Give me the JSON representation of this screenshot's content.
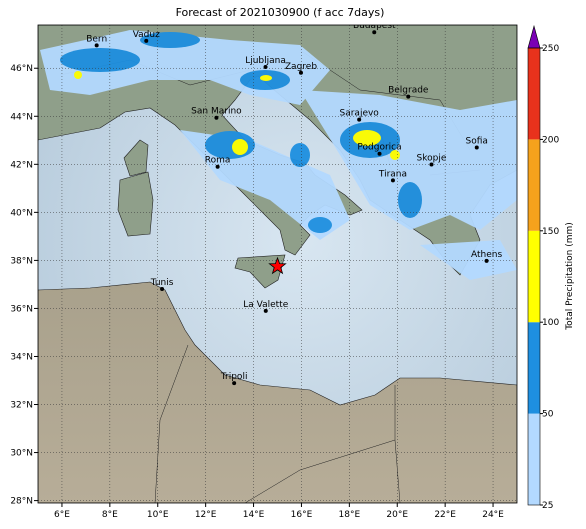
{
  "map": {
    "title": "Forecast of 2021030900 (f acc 7days)",
    "lonlim": [
      5,
      25
    ],
    "latlim": [
      27.9,
      47.8
    ],
    "lonticks": [
      {
        "value": 6,
        "label": "6°E"
      },
      {
        "value": 8,
        "label": "8°E"
      },
      {
        "value": 10,
        "label": "10°E"
      },
      {
        "value": 12,
        "label": "12°E"
      },
      {
        "value": 14,
        "label": "14°E"
      },
      {
        "value": 16,
        "label": "16°E"
      },
      {
        "value": 18,
        "label": "18°E"
      },
      {
        "value": 20,
        "label": "20°E"
      },
      {
        "value": 22,
        "label": "22°E"
      },
      {
        "value": 24,
        "label": "24°E"
      }
    ],
    "latticks": [
      {
        "value": 28,
        "label": "28°N"
      },
      {
        "value": 30,
        "label": "30°N"
      },
      {
        "value": 32,
        "label": "32°N"
      },
      {
        "value": 34,
        "label": "34°N"
      },
      {
        "value": 36,
        "label": "36°N"
      },
      {
        "value": 38,
        "label": "38°N"
      },
      {
        "value": 40,
        "label": "40°N"
      },
      {
        "value": 42,
        "label": "42°N"
      },
      {
        "value": 44,
        "label": "44°N"
      },
      {
        "value": 46,
        "label": "46°N"
      }
    ],
    "grid": true,
    "colorbar": {
      "label": "Total Precipitation (mm)",
      "levels": [
        25,
        50,
        100,
        150,
        200,
        250
      ],
      "colors": [
        "#b3d9ff",
        "#1e8fe0",
        "#ffff00",
        "#f5a21c",
        "#e8321c"
      ],
      "extend_color": "#7a00b4"
    },
    "cities": [
      {
        "name": "Bern",
        "lon": 7.45,
        "lat": 46.95
      },
      {
        "name": "Vaduz",
        "lon": 9.52,
        "lat": 47.14
      },
      {
        "name": "Budapest",
        "lon": 19.04,
        "lat": 47.5
      },
      {
        "name": "Ljubljana",
        "lon": 14.5,
        "lat": 46.05
      },
      {
        "name": "Zagreb",
        "lon": 15.98,
        "lat": 45.81
      },
      {
        "name": "Belgrade",
        "lon": 20.46,
        "lat": 44.82
      },
      {
        "name": "San Marino",
        "lon": 12.45,
        "lat": 43.94
      },
      {
        "name": "Sarajevo",
        "lon": 18.41,
        "lat": 43.86
      },
      {
        "name": "Sofia",
        "lon": 23.32,
        "lat": 42.7
      },
      {
        "name": "Podgorica",
        "lon": 19.26,
        "lat": 42.44
      },
      {
        "name": "Skopje",
        "lon": 21.43,
        "lat": 41.99
      },
      {
        "name": "Roma",
        "lon": 12.5,
        "lat": 41.9
      },
      {
        "name": "Tirana",
        "lon": 19.82,
        "lat": 41.33
      },
      {
        "name": "Athens",
        "lon": 23.73,
        "lat": 37.98
      },
      {
        "name": "Tunis",
        "lon": 10.18,
        "lat": 36.81
      },
      {
        "name": "La Valette",
        "lon": 14.51,
        "lat": 35.9
      },
      {
        "name": "Tripoli",
        "lon": 13.19,
        "lat": 32.89
      }
    ],
    "star": {
      "lon": 15.0,
      "lat": 37.75,
      "color": "#ff0000"
    }
  }
}
